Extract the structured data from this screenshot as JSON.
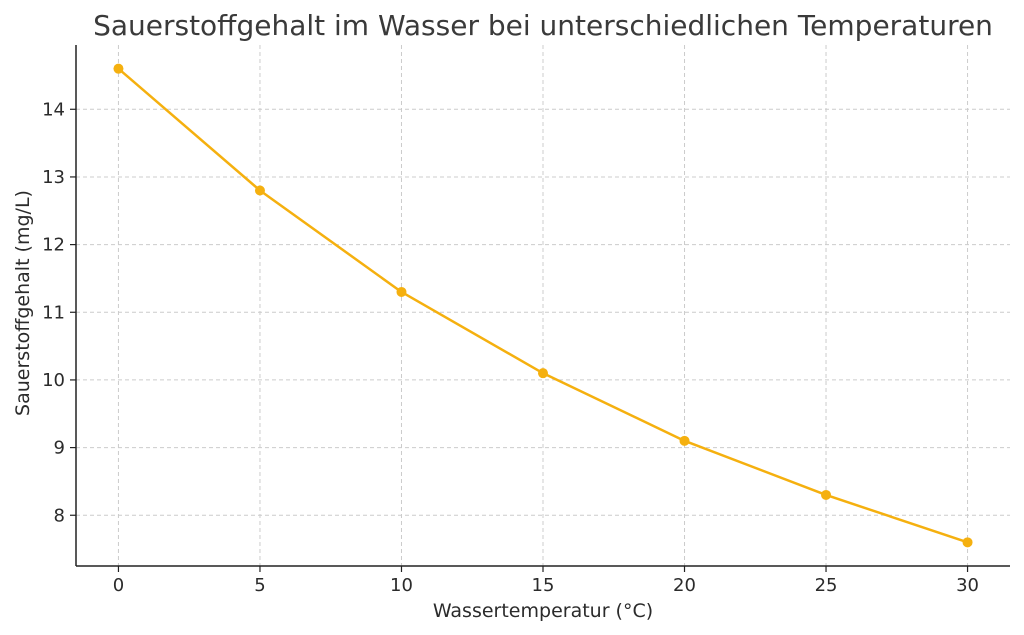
{
  "chart_data": {
    "type": "line",
    "title": "Sauerstoffgehalt im Wasser bei unterschiedlichen Temperaturen",
    "xlabel": "Wassertemperatur (°C)",
    "ylabel": "Sauerstoffgehalt (mg/L)",
    "x": [
      0,
      5,
      10,
      15,
      20,
      25,
      30
    ],
    "series": [
      {
        "values": [
          14.6,
          12.8,
          11.3,
          10.1,
          9.1,
          8.3,
          7.6
        ],
        "color": "#f5b00f"
      }
    ],
    "xlim": [
      -1.5,
      31.5
    ],
    "ylim": [
      7.25,
      14.95
    ],
    "xticks": [
      0,
      5,
      10,
      15,
      20,
      25,
      30
    ],
    "yticks": [
      8,
      9,
      10,
      11,
      12,
      13,
      14
    ],
    "grid": true,
    "markers": true
  }
}
